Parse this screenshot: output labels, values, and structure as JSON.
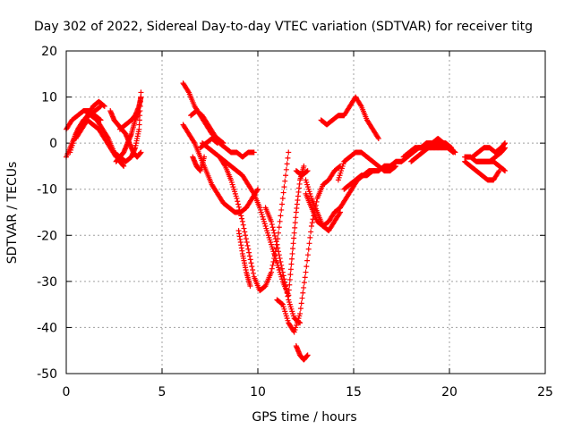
{
  "chart_data": {
    "type": "scatter",
    "title": "Day 302 of 2022, Sidereal Day-to-day VTEC variation (SDTVAR) for receiver titg",
    "xlabel": "GPS time / hours",
    "ylabel": "SDTVAR / TECUs",
    "xlim": [
      0,
      25
    ],
    "ylim": [
      -50,
      20
    ],
    "xticks": [
      0,
      5,
      10,
      15,
      20,
      25
    ],
    "yticks": [
      -50,
      -40,
      -30,
      -20,
      -10,
      0,
      10,
      20
    ],
    "grid": true,
    "marker": "plus",
    "color": "#ff0000",
    "series": [
      {
        "x": [
          0.0,
          0.3,
          0.6,
          0.9,
          1.2,
          1.5,
          1.8
        ],
        "y": [
          -3,
          0,
          3,
          5,
          6,
          7,
          8
        ]
      },
      {
        "x": [
          0.0,
          0.3,
          0.6,
          0.9,
          1.2,
          1.5,
          1.8
        ],
        "y": [
          3,
          5,
          6,
          7,
          7,
          6,
          5
        ]
      },
      {
        "x": [
          0.2,
          0.5,
          0.8,
          1.1,
          1.4,
          1.7,
          2.0
        ],
        "y": [
          -2,
          2,
          4,
          6,
          8,
          9,
          8
        ]
      },
      {
        "x": [
          0.5,
          0.8,
          1.1,
          1.4,
          1.7,
          2.0,
          2.3,
          2.6
        ],
        "y": [
          1,
          3,
          5,
          4,
          3,
          1,
          -1,
          -3
        ]
      },
      {
        "x": [
          1.0,
          1.3,
          1.6,
          1.9,
          2.2,
          2.5,
          2.8,
          3.0
        ],
        "y": [
          7,
          6,
          5,
          3,
          1,
          -2,
          -4,
          -5
        ]
      },
      {
        "x": [
          2.3,
          2.5,
          2.7,
          2.9,
          3.1,
          3.3,
          3.5,
          3.7,
          3.9
        ],
        "y": [
          7,
          5,
          4,
          3,
          2,
          0,
          -2,
          -3,
          -2
        ]
      },
      {
        "x": [
          2.6,
          2.8,
          3.0,
          3.2,
          3.4,
          3.6,
          3.8
        ],
        "y": [
          -4,
          -3,
          -2,
          0,
          2,
          5,
          7
        ]
      },
      {
        "x": [
          2.5,
          2.8,
          3.1,
          3.4,
          3.6,
          3.8,
          3.9
        ],
        "y": [
          -2,
          -3,
          -4,
          -3,
          -1,
          3,
          11
        ]
      },
      {
        "x": [
          2.8,
          3.1,
          3.4,
          3.6,
          3.8,
          3.9
        ],
        "y": [
          3,
          4,
          5,
          6,
          8,
          10
        ]
      },
      {
        "x": [
          6.1,
          6.4,
          6.7,
          7.0,
          7.3,
          7.6,
          7.9,
          8.2
        ],
        "y": [
          13,
          11,
          8,
          6,
          4,
          2,
          1,
          0
        ]
      },
      {
        "x": [
          6.1,
          6.4,
          6.7,
          7.0,
          7.3,
          7.6,
          7.9,
          8.2,
          8.5,
          8.8,
          9.1,
          9.4,
          9.7,
          10.0
        ],
        "y": [
          4,
          2,
          0,
          -3,
          -6,
          -9,
          -11,
          -13,
          -14,
          -15,
          -15,
          -14,
          -12,
          -10
        ]
      },
      {
        "x": [
          6.5,
          6.8,
          7.1,
          7.4,
          7.7,
          8.0,
          8.3,
          8.6,
          8.9,
          9.2,
          9.5,
          9.8
        ],
        "y": [
          6,
          7,
          6,
          4,
          2,
          0,
          -1,
          -2,
          -2,
          -3,
          -2,
          -2
        ]
      },
      {
        "x": [
          6.6,
          6.8,
          7.0,
          7.2
        ],
        "y": [
          -3,
          -5,
          -6,
          -3
        ]
      },
      {
        "x": [
          7.1,
          7.4,
          7.7,
          8.0,
          8.3,
          8.6,
          8.9,
          9.2,
          9.5,
          9.8,
          10.1,
          10.4,
          10.7,
          11.0,
          11.3,
          11.6
        ],
        "y": [
          0,
          -1,
          -2,
          -3,
          -4,
          -5,
          -6,
          -7,
          -9,
          -11,
          -14,
          -18,
          -22,
          -26,
          -30,
          -33
        ]
      },
      {
        "x": [
          7.0,
          7.3,
          7.6,
          7.9
        ],
        "y": [
          -1,
          0,
          1,
          0
        ]
      },
      {
        "x": [
          8.0,
          8.3,
          8.6,
          8.9,
          9.2,
          9.5,
          9.8,
          10.1,
          10.4,
          10.7,
          11.0,
          11.3,
          11.6
        ],
        "y": [
          -3,
          -5,
          -8,
          -12,
          -17,
          -23,
          -29,
          -32,
          -31,
          -28,
          -22,
          -12,
          -2
        ]
      },
      {
        "x": [
          9.0,
          9.2,
          9.4,
          9.6
        ],
        "y": [
          -19,
          -24,
          -28,
          -31
        ]
      },
      {
        "x": [
          10.4,
          10.7,
          11.0,
          11.3,
          11.6,
          11.9,
          12.2
        ],
        "y": [
          -14,
          -17,
          -22,
          -28,
          -34,
          -38,
          -39
        ]
      },
      {
        "x": [
          11.0,
          11.3,
          11.6,
          11.9,
          12.2,
          12.5,
          12.8,
          13.1,
          13.4,
          13.7,
          14.0,
          14.3
        ],
        "y": [
          -34,
          -35,
          -39,
          -41,
          -37,
          -28,
          -18,
          -12,
          -9,
          -8,
          -6,
          -5
        ]
      },
      {
        "x": [
          11.6,
          11.8,
          12.0,
          12.2,
          12.4
        ],
        "y": [
          -33,
          -24,
          -15,
          -8,
          -5
        ]
      },
      {
        "x": [
          12.0,
          12.2,
          12.4,
          12.6
        ],
        "y": [
          -44,
          -46,
          -47,
          -46
        ]
      },
      {
        "x": [
          12.0,
          12.3,
          12.6
        ],
        "y": [
          -6,
          -7,
          -6
        ]
      },
      {
        "x": [
          12.5,
          12.8,
          13.1,
          13.4,
          13.7,
          14.0,
          14.3,
          14.6,
          14.9,
          15.2,
          15.5,
          15.8,
          16.1
        ],
        "y": [
          -11,
          -14,
          -17,
          -18,
          -17,
          -15,
          -14,
          -12,
          -10,
          -8,
          -7,
          -6,
          -6
        ]
      },
      {
        "x": [
          12.5,
          12.8,
          13.1,
          13.4,
          13.7,
          14.0,
          14.3
        ],
        "y": [
          -8,
          -12,
          -15,
          -18,
          -19,
          -17,
          -15
        ]
      },
      {
        "x": [
          13.3,
          13.6,
          13.9,
          14.2,
          14.5,
          14.8,
          15.1,
          15.4,
          15.7,
          16.0,
          16.3
        ],
        "y": [
          5,
          4,
          5,
          6,
          6,
          8,
          10,
          8,
          5,
          3,
          1
        ]
      },
      {
        "x": [
          14.2,
          14.5,
          14.8,
          15.1,
          15.4,
          15.7,
          16.0,
          16.3,
          16.6,
          16.9,
          17.2
        ],
        "y": [
          -8,
          -4,
          -3,
          -2,
          -2,
          -3,
          -4,
          -5,
          -6,
          -6,
          -5
        ]
      },
      {
        "x": [
          14.5,
          14.8,
          15.1,
          15.4,
          15.7,
          16.0,
          16.3,
          16.6,
          16.9
        ],
        "y": [
          -10,
          -9,
          -8,
          -7,
          -7,
          -6,
          -6,
          -5,
          -5
        ]
      },
      {
        "x": [
          16.6,
          16.9,
          17.2,
          17.5,
          17.8,
          18.1,
          18.4,
          18.7,
          19.0,
          19.3,
          19.6,
          19.9,
          20.2
        ],
        "y": [
          -5,
          -5,
          -4,
          -4,
          -3,
          -2,
          -1,
          -1,
          -1,
          -1,
          -1,
          -1,
          -2
        ]
      },
      {
        "x": [
          17.6,
          17.9,
          18.2,
          18.5,
          18.8,
          19.1,
          19.4,
          19.7,
          20.0,
          20.3
        ],
        "y": [
          -3,
          -2,
          -1,
          -1,
          0,
          0,
          1,
          0,
          -1,
          -2
        ]
      },
      {
        "x": [
          18.0,
          18.3,
          18.6,
          18.9,
          19.2,
          19.5,
          19.8,
          20.1
        ],
        "y": [
          -4,
          -3,
          -2,
          -1,
          0,
          0,
          0,
          -1
        ]
      },
      {
        "x": [
          20.8,
          21.1,
          21.4,
          21.7,
          22.0,
          22.3,
          22.6,
          22.9
        ],
        "y": [
          -3,
          -3,
          -4,
          -4,
          -4,
          -4,
          -5,
          -6
        ]
      },
      {
        "x": [
          20.8,
          21.1,
          21.4,
          21.7,
          22.0,
          22.3,
          22.6
        ],
        "y": [
          -4,
          -5,
          -6,
          -7,
          -8,
          -8,
          -6
        ]
      },
      {
        "x": [
          21.2,
          21.5,
          21.8,
          22.1,
          22.4,
          22.7,
          22.9
        ],
        "y": [
          -3,
          -2,
          -1,
          -1,
          -2,
          -1,
          0
        ]
      },
      {
        "x": [
          21.5,
          21.8,
          22.1,
          22.4,
          22.7,
          22.9
        ],
        "y": [
          -4,
          -4,
          -4,
          -3,
          -2,
          -1
        ]
      }
    ]
  }
}
